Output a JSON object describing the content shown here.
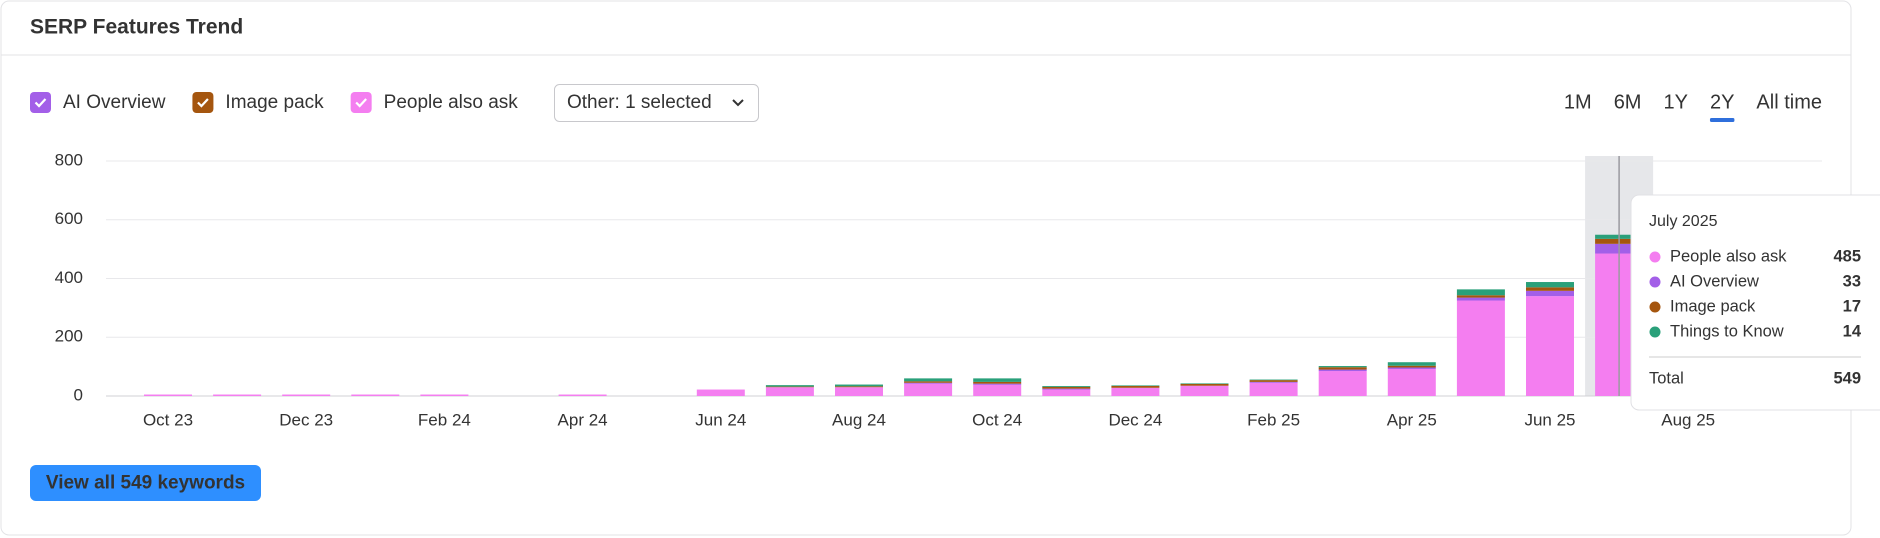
{
  "header": {
    "title": "SERP Features Trend"
  },
  "controls": {
    "other_dropdown": "Other: 1 selected",
    "ranges": [
      "1M",
      "6M",
      "1Y",
      "2Y",
      "All time"
    ],
    "active_range": "2Y"
  },
  "chart_data": {
    "type": "bar",
    "stacked": true,
    "categories": [
      "Oct 23",
      null,
      "Dec 23",
      null,
      "Feb 24",
      null,
      "Apr 24",
      null,
      "Jun 24",
      null,
      "Aug 24",
      null,
      "Oct 24",
      null,
      "Dec 24",
      null,
      "Feb 25",
      null,
      "Apr 25",
      null,
      "Jun 25",
      null,
      "Aug 25"
    ],
    "series": [
      {
        "name": "People also ask",
        "color": "#f47ef0",
        "values": [
          5,
          5,
          5,
          5,
          5,
          null,
          5,
          null,
          22,
          30,
          30,
          42,
          38,
          22,
          28,
          35,
          45,
          85,
          92,
          325,
          340,
          485,
          null
        ]
      },
      {
        "name": "AI Overview",
        "color": "#a35fe8",
        "values": [
          null,
          null,
          null,
          null,
          null,
          null,
          null,
          null,
          null,
          null,
          null,
          3,
          4,
          3,
          null,
          null,
          3,
          5,
          5,
          10,
          18,
          33,
          null
        ]
      },
      {
        "name": "Image pack",
        "color": "#a5560f",
        "values": [
          null,
          null,
          null,
          null,
          null,
          null,
          null,
          null,
          null,
          2,
          3,
          5,
          6,
          6,
          6,
          6,
          6,
          8,
          6,
          8,
          12,
          17,
          null
        ]
      },
      {
        "name": "Things to Know",
        "color": "#2aa07a",
        "values": [
          null,
          null,
          null,
          null,
          null,
          null,
          null,
          null,
          null,
          5,
          6,
          10,
          12,
          3,
          2,
          2,
          2,
          4,
          12,
          20,
          18,
          14,
          null
        ]
      }
    ],
    "ylim": [
      0,
      800
    ],
    "yticks": [
      0,
      200,
      400,
      600,
      800
    ],
    "grid": true
  },
  "tooltip": {
    "title": "July 2025",
    "total_label": "Total",
    "total_value": 549
  },
  "button": {
    "label": "View all 549 keywords"
  }
}
